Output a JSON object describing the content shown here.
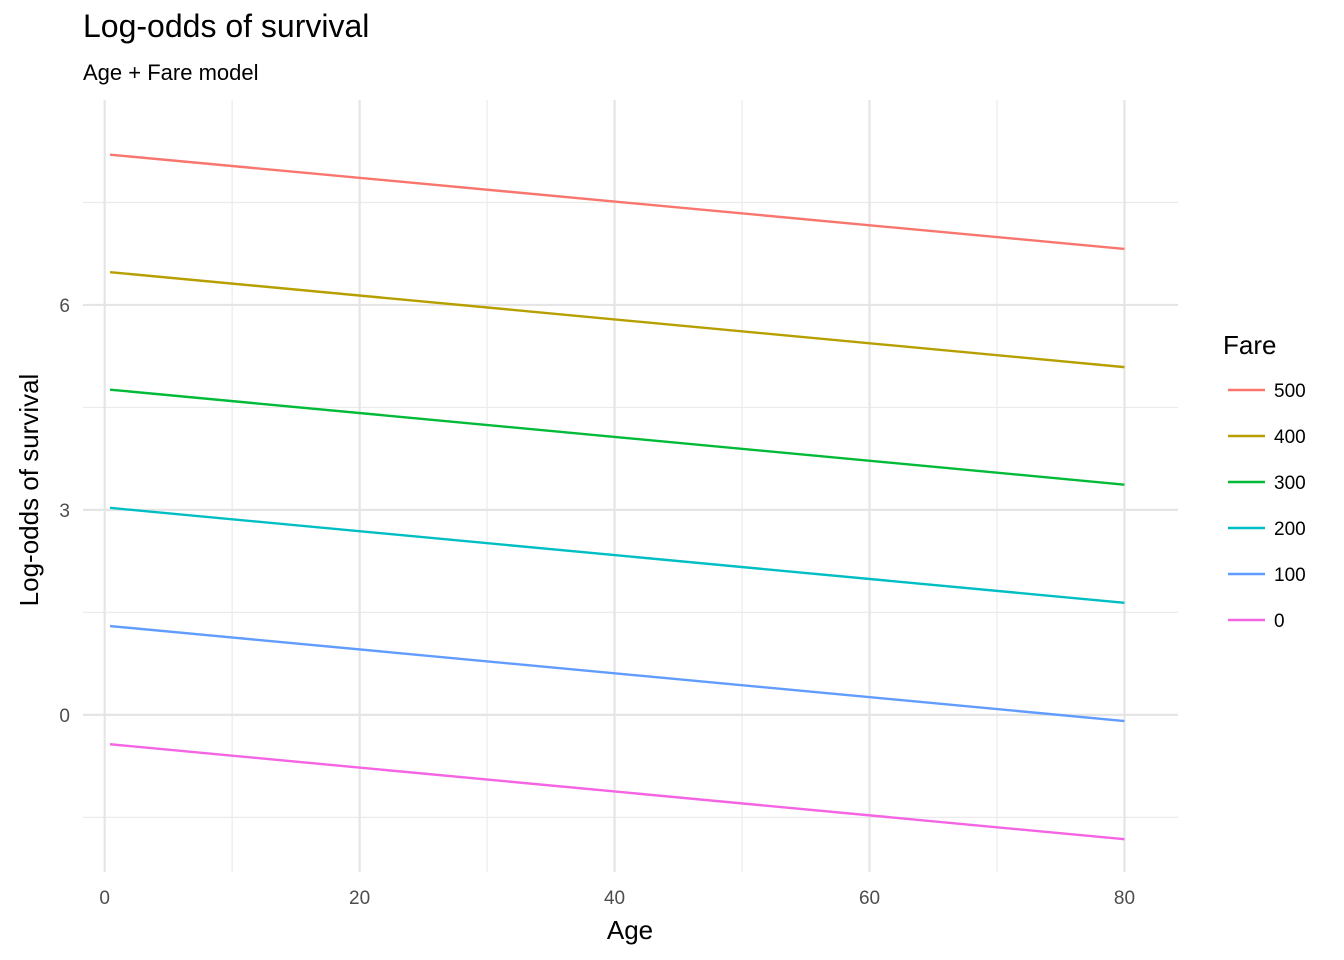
{
  "chart_data": {
    "type": "line",
    "title": "Log-odds of survival",
    "subtitle": "Age + Fare model",
    "xlabel": "Age",
    "ylabel": "Log-odds of survival",
    "xlim": [
      -1.7,
      84.2
    ],
    "ylim": [
      -2.3,
      9.0
    ],
    "xticks": [
      0,
      20,
      40,
      60,
      80
    ],
    "yticks": [
      0,
      3,
      6
    ],
    "grid": true,
    "legend": {
      "title": "Fare",
      "placement": "right"
    },
    "series": [
      {
        "name": "500",
        "color": "#F8766D",
        "x": [
          0.42,
          80
        ],
        "y": [
          8.2,
          6.82
        ]
      },
      {
        "name": "400",
        "color": "#B79F00",
        "x": [
          0.42,
          80
        ],
        "y": [
          6.48,
          5.09
        ]
      },
      {
        "name": "300",
        "color": "#00BA38",
        "x": [
          0.42,
          80
        ],
        "y": [
          4.76,
          3.37
        ]
      },
      {
        "name": "200",
        "color": "#00BFC4",
        "x": [
          0.42,
          80
        ],
        "y": [
          3.03,
          1.64
        ]
      },
      {
        "name": "100",
        "color": "#619CFF",
        "x": [
          0.42,
          80
        ],
        "y": [
          1.3,
          -0.09
        ]
      },
      {
        "name": "0",
        "color": "#F564E3",
        "x": [
          0.42,
          80
        ],
        "y": [
          -0.43,
          -1.82
        ]
      }
    ]
  }
}
